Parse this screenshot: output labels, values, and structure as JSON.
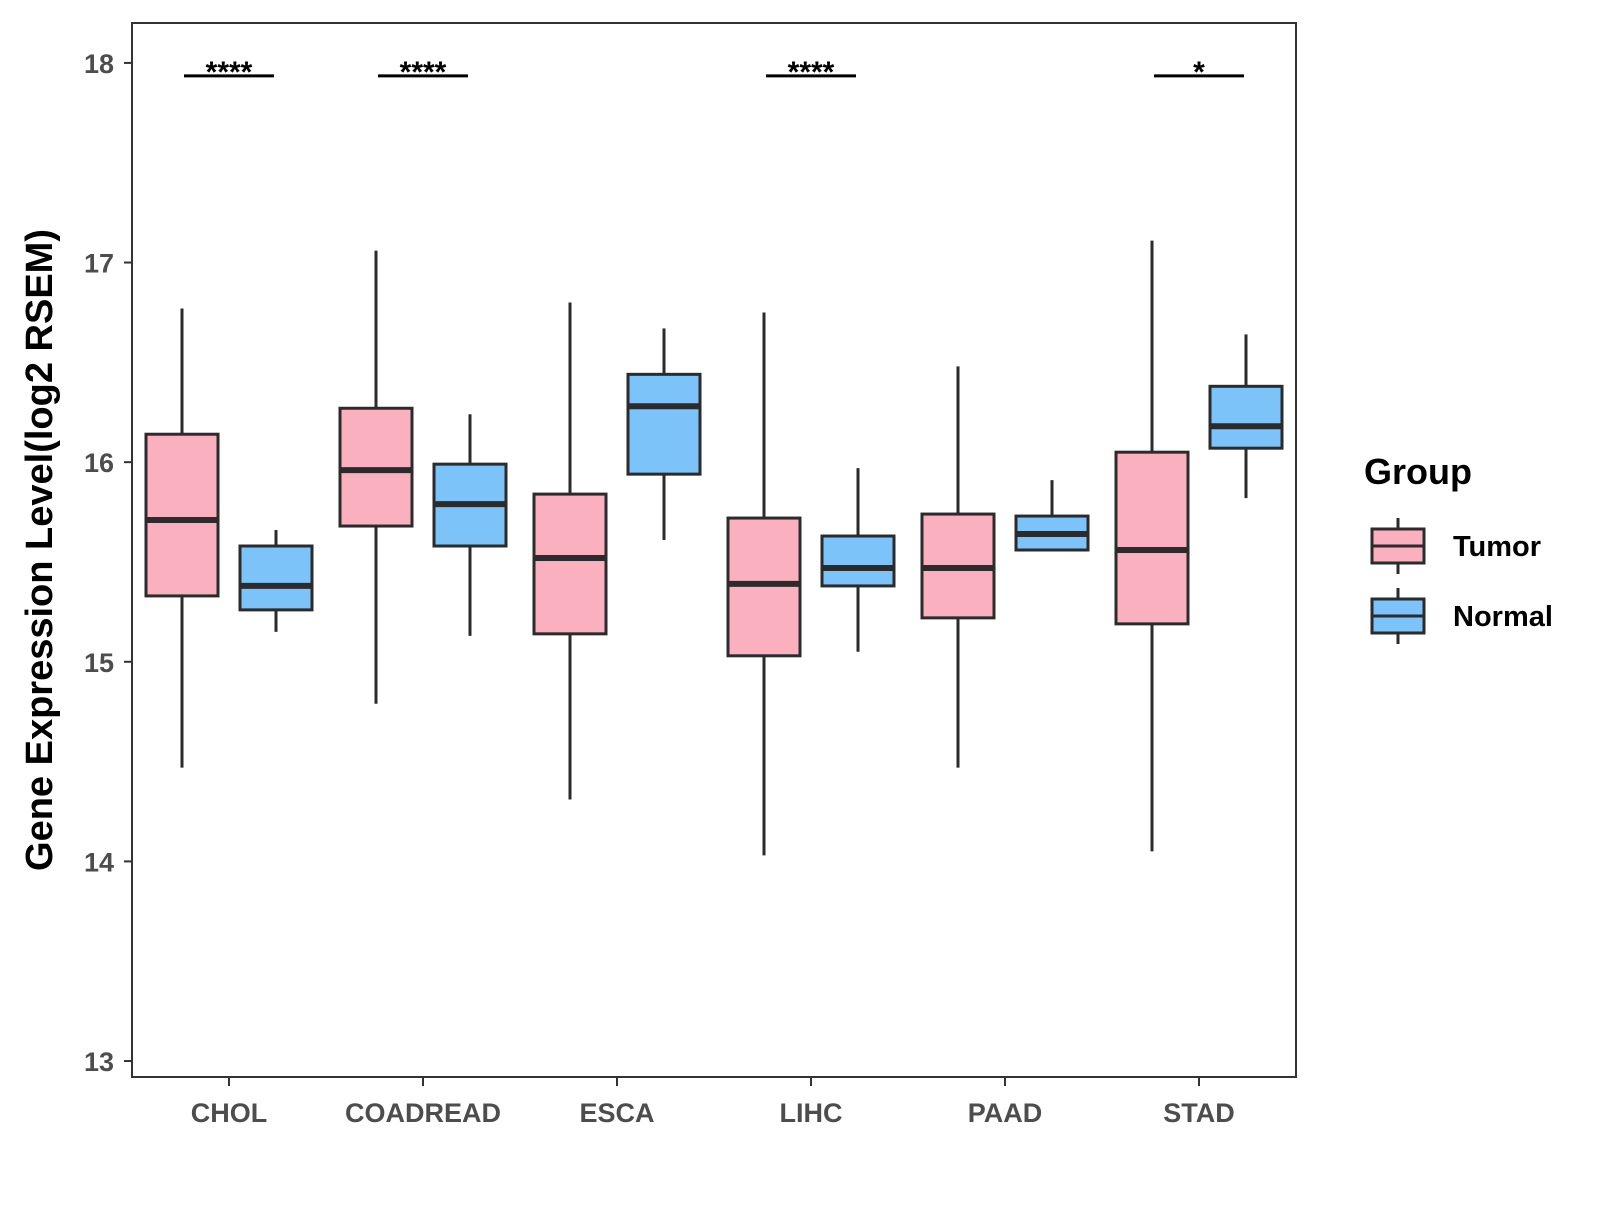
{
  "chart_data": {
    "type": "boxplot",
    "title": "",
    "xlabel": "",
    "ylabel": "Gene Expression Level(log2 RSEM)",
    "ylim": [
      12.92,
      18.2
    ],
    "yticks": [
      13,
      14,
      15,
      16,
      17,
      18
    ],
    "grid": false,
    "legend": {
      "title": "Group",
      "position": "right"
    },
    "categories": [
      "CHOL",
      "COADREAD",
      "ESCA",
      "LIHC",
      "PAAD",
      "STAD"
    ],
    "series": [
      {
        "name": "Tumor",
        "color": "#FBB0C0",
        "boxes": [
          {
            "min": 14.47,
            "q1": 15.33,
            "median": 15.71,
            "q3": 16.14,
            "max": 16.77
          },
          {
            "min": 14.79,
            "q1": 15.68,
            "median": 15.96,
            "q3": 16.27,
            "max": 17.06
          },
          {
            "min": 14.31,
            "q1": 15.14,
            "median": 15.52,
            "q3": 15.84,
            "max": 16.8
          },
          {
            "min": 14.03,
            "q1": 15.03,
            "median": 15.39,
            "q3": 15.72,
            "max": 16.75
          },
          {
            "min": 14.47,
            "q1": 15.22,
            "median": 15.47,
            "q3": 15.74,
            "max": 16.48
          },
          {
            "min": 14.05,
            "q1": 15.19,
            "median": 15.56,
            "q3": 16.05,
            "max": 17.11
          }
        ]
      },
      {
        "name": "Normal",
        "color": "#7BC3F8",
        "boxes": [
          {
            "min": 15.15,
            "q1": 15.26,
            "median": 15.38,
            "q3": 15.58,
            "max": 15.66
          },
          {
            "min": 15.13,
            "q1": 15.58,
            "median": 15.79,
            "q3": 15.99,
            "max": 16.24
          },
          {
            "min": 15.61,
            "q1": 15.94,
            "median": 16.28,
            "q3": 16.44,
            "max": 16.67
          },
          {
            "min": 15.05,
            "q1": 15.38,
            "median": 15.47,
            "q3": 15.63,
            "max": 15.97
          },
          {
            "min": 15.56,
            "q1": 15.56,
            "median": 15.64,
            "q3": 15.73,
            "max": 15.91
          },
          {
            "min": 15.82,
            "q1": 16.07,
            "median": 16.18,
            "q3": 16.38,
            "max": 16.64
          }
        ]
      }
    ],
    "significance": [
      "****",
      "****",
      "",
      "****",
      "",
      "*"
    ]
  }
}
